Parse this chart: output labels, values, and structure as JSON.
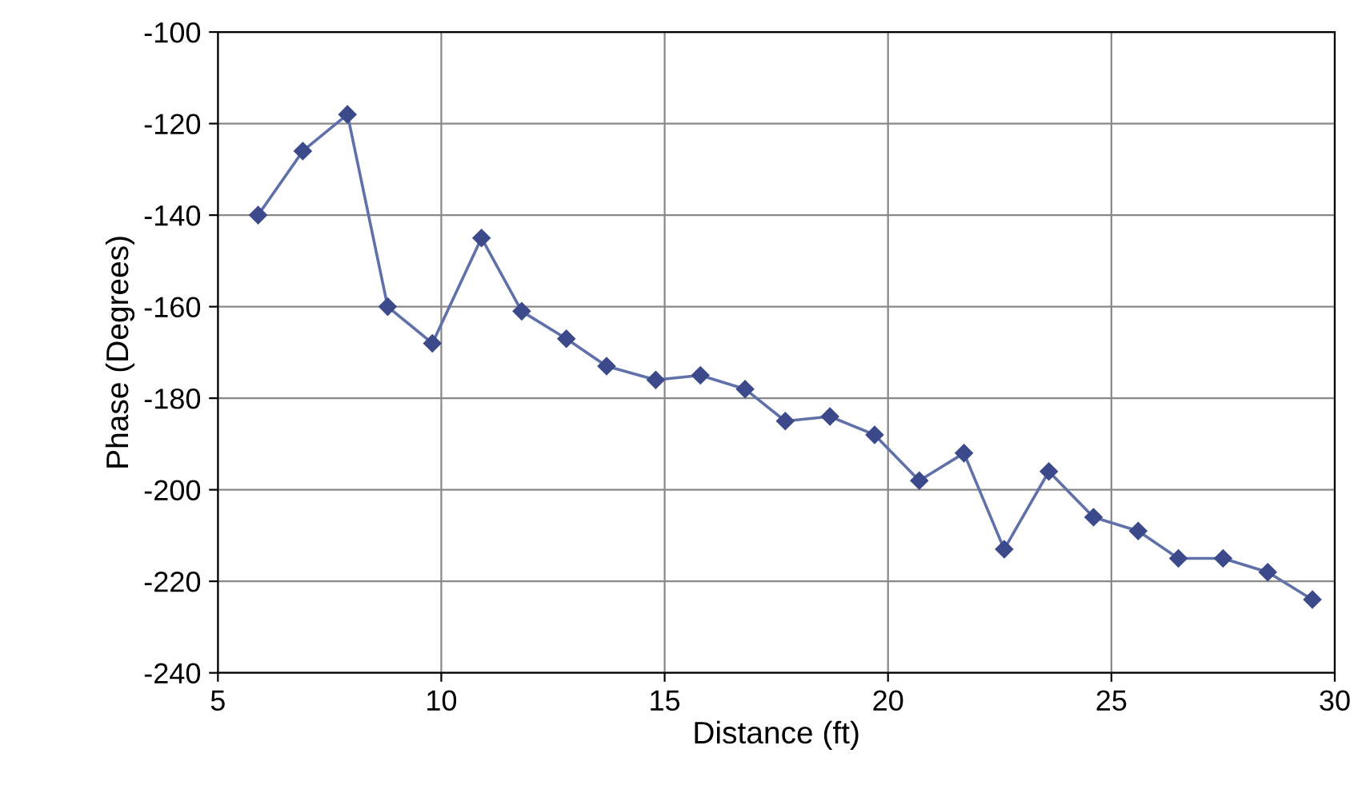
{
  "chart_data": {
    "type": "line",
    "xlabel": "Distance (ft)",
    "ylabel": "Phase (Degrees)",
    "x": [
      5.9,
      6.9,
      7.9,
      8.8,
      9.8,
      10.9,
      11.8,
      12.8,
      13.7,
      14.8,
      15.8,
      16.8,
      17.7,
      18.7,
      19.7,
      20.7,
      21.7,
      22.6,
      23.6,
      24.6,
      25.6,
      26.5,
      27.5,
      28.5,
      29.5
    ],
    "series": [
      {
        "color": "#3c4a8c",
        "values": [
          -140,
          -126,
          -118,
          -160,
          -168,
          -145,
          -161,
          -167,
          -173,
          -176,
          -175,
          -178,
          -185,
          -184,
          -188,
          -198,
          -192,
          -213,
          -196,
          -206,
          -209,
          -215,
          -215,
          -218,
          -224
        ]
      }
    ],
    "xlim": [
      5,
      30
    ],
    "xticks": [
      5,
      10,
      15,
      20,
      25,
      30
    ],
    "ylim": [
      -240,
      -100
    ],
    "yticks": [
      -240,
      -220,
      -200,
      -180,
      -160,
      -140,
      -120,
      -100
    ],
    "grid": true,
    "marker": "diamond",
    "line_style": "solid",
    "legend": false
  }
}
